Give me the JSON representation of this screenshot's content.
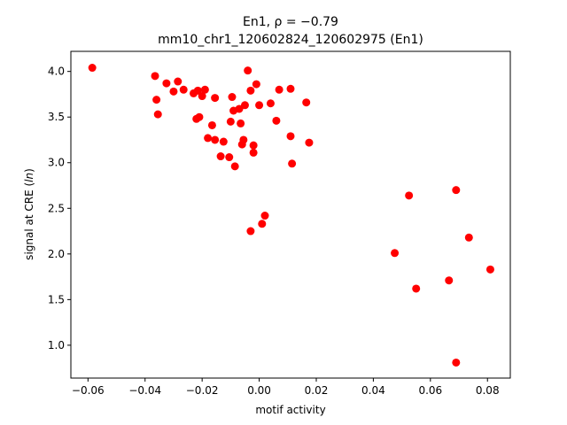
{
  "chart_data": {
    "type": "scatter",
    "title_line1": "En1, ρ = −0.79",
    "title_line2": "mm10_chr1_120602824_120602975 (En1)",
    "xlabel": "motif activity",
    "ylabel_prefix": "signal at CRE (",
    "ylabel_italic": "ln",
    "ylabel_suffix": ")",
    "xlim": [
      -0.066,
      0.088
    ],
    "ylim": [
      0.64,
      4.22
    ],
    "xticks": [
      -0.06,
      -0.04,
      -0.02,
      0.0,
      0.02,
      0.04,
      0.06,
      0.08
    ],
    "xtick_labels": [
      "−0.06",
      "−0.04",
      "−0.02",
      "0.00",
      "0.02",
      "0.04",
      "0.06",
      "0.08"
    ],
    "yticks": [
      1.0,
      1.5,
      2.0,
      2.5,
      3.0,
      3.5,
      4.0
    ],
    "ytick_labels": [
      "1.0",
      "1.5",
      "2.0",
      "2.5",
      "3.0",
      "3.5",
      "4.0"
    ],
    "grid": false,
    "marker_color": "#ff0000",
    "points": [
      {
        "x": -0.0585,
        "y": 4.04
      },
      {
        "x": -0.0365,
        "y": 3.95
      },
      {
        "x": -0.036,
        "y": 3.69
      },
      {
        "x": -0.0355,
        "y": 3.53
      },
      {
        "x": -0.0325,
        "y": 3.87
      },
      {
        "x": -0.03,
        "y": 3.78
      },
      {
        "x": -0.0285,
        "y": 3.89
      },
      {
        "x": -0.0265,
        "y": 3.8
      },
      {
        "x": -0.023,
        "y": 3.76
      },
      {
        "x": -0.0215,
        "y": 3.79
      },
      {
        "x": -0.022,
        "y": 3.48
      },
      {
        "x": -0.021,
        "y": 3.5
      },
      {
        "x": -0.02,
        "y": 3.73
      },
      {
        "x": -0.019,
        "y": 3.8
      },
      {
        "x": -0.018,
        "y": 3.27
      },
      {
        "x": -0.0165,
        "y": 3.41
      },
      {
        "x": -0.0155,
        "y": 3.71
      },
      {
        "x": -0.0155,
        "y": 3.25
      },
      {
        "x": -0.0135,
        "y": 3.07
      },
      {
        "x": -0.0125,
        "y": 3.23
      },
      {
        "x": -0.0105,
        "y": 3.06
      },
      {
        "x": -0.01,
        "y": 3.45
      },
      {
        "x": -0.0095,
        "y": 3.72
      },
      {
        "x": -0.009,
        "y": 3.57
      },
      {
        "x": -0.0085,
        "y": 2.96
      },
      {
        "x": -0.007,
        "y": 3.59
      },
      {
        "x": -0.0065,
        "y": 3.43
      },
      {
        "x": -0.006,
        "y": 3.2
      },
      {
        "x": -0.0055,
        "y": 3.25
      },
      {
        "x": -0.005,
        "y": 3.63
      },
      {
        "x": -0.004,
        "y": 4.01
      },
      {
        "x": -0.003,
        "y": 3.79
      },
      {
        "x": -0.003,
        "y": 2.25
      },
      {
        "x": -0.002,
        "y": 3.11
      },
      {
        "x": -0.002,
        "y": 3.19
      },
      {
        "x": -0.001,
        "y": 3.86
      },
      {
        "x": 0.0,
        "y": 3.63
      },
      {
        "x": 0.001,
        "y": 2.33
      },
      {
        "x": 0.002,
        "y": 2.42
      },
      {
        "x": 0.004,
        "y": 3.65
      },
      {
        "x": 0.006,
        "y": 3.46
      },
      {
        "x": 0.007,
        "y": 3.8
      },
      {
        "x": 0.011,
        "y": 3.81
      },
      {
        "x": 0.011,
        "y": 3.29
      },
      {
        "x": 0.0115,
        "y": 2.99
      },
      {
        "x": 0.0165,
        "y": 3.66
      },
      {
        "x": 0.0175,
        "y": 3.22
      },
      {
        "x": 0.0475,
        "y": 2.01
      },
      {
        "x": 0.0525,
        "y": 2.64
      },
      {
        "x": 0.055,
        "y": 1.62
      },
      {
        "x": 0.0665,
        "y": 1.71
      },
      {
        "x": 0.069,
        "y": 2.7
      },
      {
        "x": 0.069,
        "y": 0.81
      },
      {
        "x": 0.0735,
        "y": 2.18
      },
      {
        "x": 0.081,
        "y": 1.83
      }
    ]
  }
}
